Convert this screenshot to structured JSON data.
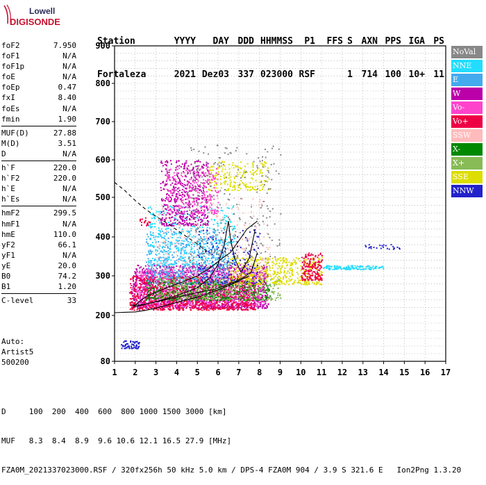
{
  "logo": {
    "line1": "Lowell",
    "line2": "DIGISONDE"
  },
  "header": {
    "labels": [
      "Station",
      "YYYY",
      "DAY",
      "DDD",
      "HHMMSS",
      "P1",
      "FFS",
      "S",
      "AXN",
      "PPS",
      "IGA",
      "PS"
    ],
    "values": [
      "Fortaleza",
      "2021",
      "Dez03",
      "337",
      "023000",
      "RSF",
      "",
      "1",
      "714",
      "100",
      "10+",
      "11"
    ]
  },
  "params": {
    "groups": [
      [
        {
          "label": "foF2",
          "value": "7.950"
        },
        {
          "label": "foF1",
          "value": "N/A"
        },
        {
          "label": "foF1p",
          "value": "N/A"
        },
        {
          "label": "foE",
          "value": "N/A"
        },
        {
          "label": "foEp",
          "value": "0.47"
        },
        {
          "label": "fxI",
          "value": "8.40"
        },
        {
          "label": "foEs",
          "value": "N/A"
        },
        {
          "label": "fmin",
          "value": "1.90"
        }
      ],
      [
        {
          "label": "MUF(D)",
          "value": "27.88"
        },
        {
          "label": "M(D)",
          "value": "3.51"
        },
        {
          "label": "D",
          "value": "N/A"
        }
      ],
      [
        {
          "label": "h`F",
          "value": "220.0"
        },
        {
          "label": "h`F2",
          "value": "220.0"
        },
        {
          "label": "h`E",
          "value": "N/A"
        },
        {
          "label": "h`Es",
          "value": "N/A"
        }
      ],
      [
        {
          "label": "hmF2",
          "value": "299.5"
        },
        {
          "label": "hmF1",
          "value": "N/A"
        },
        {
          "label": "hmE",
          "value": "110.0"
        },
        {
          "label": "yF2",
          "value": "66.1"
        },
        {
          "label": "yF1",
          "value": "N/A"
        },
        {
          "label": "yE",
          "value": "20.0"
        },
        {
          "label": "B0",
          "value": "74.2"
        },
        {
          "label": "B1",
          "value": "1.20"
        }
      ],
      [
        {
          "label": "C-level",
          "value": "33"
        }
      ]
    ]
  },
  "auto": [
    "Auto:",
    "Artist5",
    "500200"
  ],
  "legend": [
    {
      "label": "NoVal",
      "color": "#888888"
    },
    {
      "label": "NNE",
      "color": "#22ddff"
    },
    {
      "label": "E",
      "color": "#44aaee"
    },
    {
      "label": "W",
      "color": "#bb00aa"
    },
    {
      "label": "Vo-",
      "color": "#ff44cc"
    },
    {
      "label": "Vo+",
      "color": "#ee0044"
    },
    {
      "label": "SSW",
      "color": "#ffbbbb"
    },
    {
      "label": "X-",
      "color": "#008800"
    },
    {
      "label": "X+",
      "color": "#88bb55"
    },
    {
      "label": "SSE",
      "color": "#dddd00"
    },
    {
      "label": "NNW",
      "color": "#2222cc"
    }
  ],
  "footer": {
    "line1": "D     100  200  400  600  800 1000 1500 3000 [km]",
    "line2": "MUF   8.3  8.4  8.9  9.6 10.6 12.1 16.5 27.9 [MHz]",
    "line3": "FZA0M_2021337023000.RSF / 320fx256h 50 kHz 5.0 km / DPS-4 FZA0M 904 / 3.9 S 321.6 E   Ion2Png 1.3.20"
  },
  "chart_data": {
    "type": "scatter",
    "title": "",
    "xlabel": "",
    "ylabel": "",
    "xlim": [
      1,
      17
    ],
    "ylim": [
      80,
      900
    ],
    "x_ticks": [
      "1",
      "2",
      "3",
      "4",
      "5",
      "6",
      "7",
      "8",
      "9",
      "10",
      "11",
      "12",
      "13",
      "14",
      "15",
      "16",
      "17"
    ],
    "y_ticks": [
      "80",
      "200",
      "300",
      "400",
      "500",
      "600",
      "700",
      "800",
      "900"
    ],
    "y_tick_values": [
      80,
      200,
      300,
      400,
      500,
      600,
      700,
      800,
      900
    ],
    "grid": true,
    "scale": "ionogram-height",
    "lines": [
      {
        "style": "solid",
        "points": [
          [
            1,
            207
          ],
          [
            1.5,
            208
          ],
          [
            2,
            209
          ],
          [
            2.5,
            213
          ],
          [
            3,
            218
          ],
          [
            3.5,
            226
          ],
          [
            4,
            233
          ],
          [
            4.5,
            240
          ],
          [
            5,
            246
          ],
          [
            5.5,
            255
          ],
          [
            6,
            265
          ],
          [
            6.5,
            275
          ],
          [
            7,
            287
          ],
          [
            7.5,
            300
          ]
        ]
      },
      {
        "style": "solid",
        "points": [
          [
            1.8,
            226
          ],
          [
            2.2,
            226
          ],
          [
            2.8,
            232
          ],
          [
            3.5,
            240
          ],
          [
            4.2,
            248
          ],
          [
            5,
            258
          ],
          [
            5.8,
            265
          ],
          [
            6.3,
            275
          ],
          [
            6.8,
            285
          ],
          [
            7.2,
            295
          ],
          [
            7.6,
            310
          ],
          [
            7.9,
            360
          ]
        ]
      },
      {
        "style": "solid",
        "points": [
          [
            2,
            222
          ],
          [
            3,
            235
          ],
          [
            4,
            250
          ],
          [
            5,
            270
          ],
          [
            5.6,
            295
          ],
          [
            6,
            330
          ],
          [
            6.3,
            380
          ],
          [
            6.5,
            440
          ],
          [
            6.6,
            395
          ],
          [
            6.8,
            345
          ],
          [
            7.1,
            310
          ],
          [
            7.5,
            345
          ],
          [
            7.8,
            420
          ]
        ]
      },
      {
        "style": "solid",
        "points": [
          [
            1.9,
            220
          ],
          [
            2.2,
            236
          ],
          [
            2.6,
            250
          ],
          [
            3.1,
            260
          ],
          [
            3.6,
            272
          ],
          [
            4.3,
            285
          ],
          [
            5,
            300
          ],
          [
            5.6,
            320
          ],
          [
            6.2,
            345
          ],
          [
            6.6,
            360
          ],
          [
            7,
            390
          ],
          [
            7.4,
            420
          ],
          [
            7.9,
            440
          ]
        ]
      },
      {
        "style": "dashed",
        "points": [
          [
            1,
            540
          ],
          [
            1.5,
            518
          ],
          [
            2,
            492
          ],
          [
            2.5,
            470
          ],
          [
            3,
            452
          ],
          [
            3.5,
            436
          ],
          [
            4,
            418
          ],
          [
            4.5,
            400
          ],
          [
            5,
            382
          ],
          [
            5.5,
            362
          ]
        ]
      }
    ],
    "clusters": [
      {
        "color": "#bb00aa",
        "x": [
          1.8,
          8.4
        ],
        "y": [
          220,
          330
        ],
        "n": 1500
      },
      {
        "color": "#ff44cc",
        "x": [
          2.0,
          8.2
        ],
        "y": [
          225,
          320
        ],
        "n": 900
      },
      {
        "color": "#ee0044",
        "x": [
          1.7,
          7.8
        ],
        "y": [
          215,
          300
        ],
        "n": 900
      },
      {
        "color": "#44aaee",
        "x": [
          2.5,
          6.5
        ],
        "y": [
          280,
          420
        ],
        "n": 600
      },
      {
        "color": "#22ddff",
        "x": [
          2.6,
          6.8
        ],
        "y": [
          330,
          480
        ],
        "n": 400
      },
      {
        "color": "#008800",
        "x": [
          2.5,
          8.5
        ],
        "y": [
          240,
          290
        ],
        "n": 400
      },
      {
        "color": "#88bb55",
        "x": [
          3.0,
          9.0
        ],
        "y": [
          240,
          300
        ],
        "n": 350
      },
      {
        "color": "#dddd00",
        "x": [
          6.5,
          11.0
        ],
        "y": [
          280,
          350
        ],
        "n": 500
      },
      {
        "color": "#dddd00",
        "x": [
          5.5,
          8.5
        ],
        "y": [
          520,
          600
        ],
        "n": 200
      },
      {
        "color": "#bb00aa",
        "x": [
          3.2,
          5.5
        ],
        "y": [
          430,
          600
        ],
        "n": 500
      },
      {
        "color": "#ff44cc",
        "x": [
          3.5,
          6.0
        ],
        "y": [
          460,
          580
        ],
        "n": 250
      },
      {
        "color": "#ffbbbb",
        "x": [
          3.0,
          8.5
        ],
        "y": [
          300,
          500
        ],
        "n": 250
      },
      {
        "color": "#2222cc",
        "x": [
          5.0,
          8.0
        ],
        "y": [
          280,
          420
        ],
        "n": 150
      },
      {
        "color": "#888888",
        "x": [
          4.5,
          9.0
        ],
        "y": [
          320,
          640
        ],
        "n": 250
      },
      {
        "color": "#22ddff",
        "x": [
          11.0,
          14.0
        ],
        "y": [
          318,
          328
        ],
        "n": 120
      },
      {
        "color": "#2222cc",
        "x": [
          13.0,
          14.8
        ],
        "y": [
          370,
          385
        ],
        "n": 25
      },
      {
        "color": "#ee0044",
        "x": [
          10.0,
          11.0
        ],
        "y": [
          290,
          360
        ],
        "n": 180
      },
      {
        "color": "#2222cc",
        "x": [
          1.3,
          2.2
        ],
        "y": [
          115,
          135
        ],
        "n": 60
      },
      {
        "color": "#ee0044",
        "x": [
          2.2,
          2.7
        ],
        "y": [
          430,
          450
        ],
        "n": 20
      }
    ]
  }
}
